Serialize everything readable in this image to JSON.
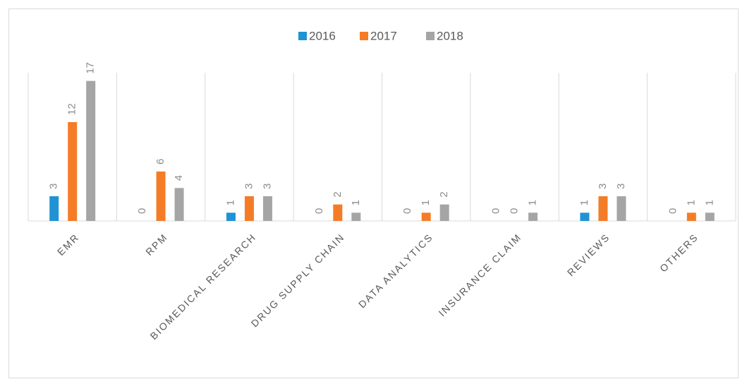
{
  "chart_data": {
    "type": "bar",
    "categories": [
      "EMR",
      "RPM",
      "BIOMEDICAL RESEARCH",
      "DRUG SUPPLY CHAIN",
      "DATA ANALYTICS",
      "INSURANCE CLAIM",
      "REVIEWS",
      "OTHERS"
    ],
    "series": [
      {
        "name": "2016",
        "color": "#1f93d4",
        "values": [
          3,
          0,
          1,
          0,
          0,
          0,
          1,
          0
        ]
      },
      {
        "name": "2017",
        "color": "#f57c26",
        "values": [
          12,
          6,
          3,
          2,
          1,
          0,
          3,
          1
        ]
      },
      {
        "name": "2018",
        "color": "#a5a5a5",
        "values": [
          17,
          4,
          3,
          1,
          2,
          1,
          3,
          1
        ]
      }
    ],
    "ylim": [
      0,
      18
    ],
    "legend": "top"
  }
}
